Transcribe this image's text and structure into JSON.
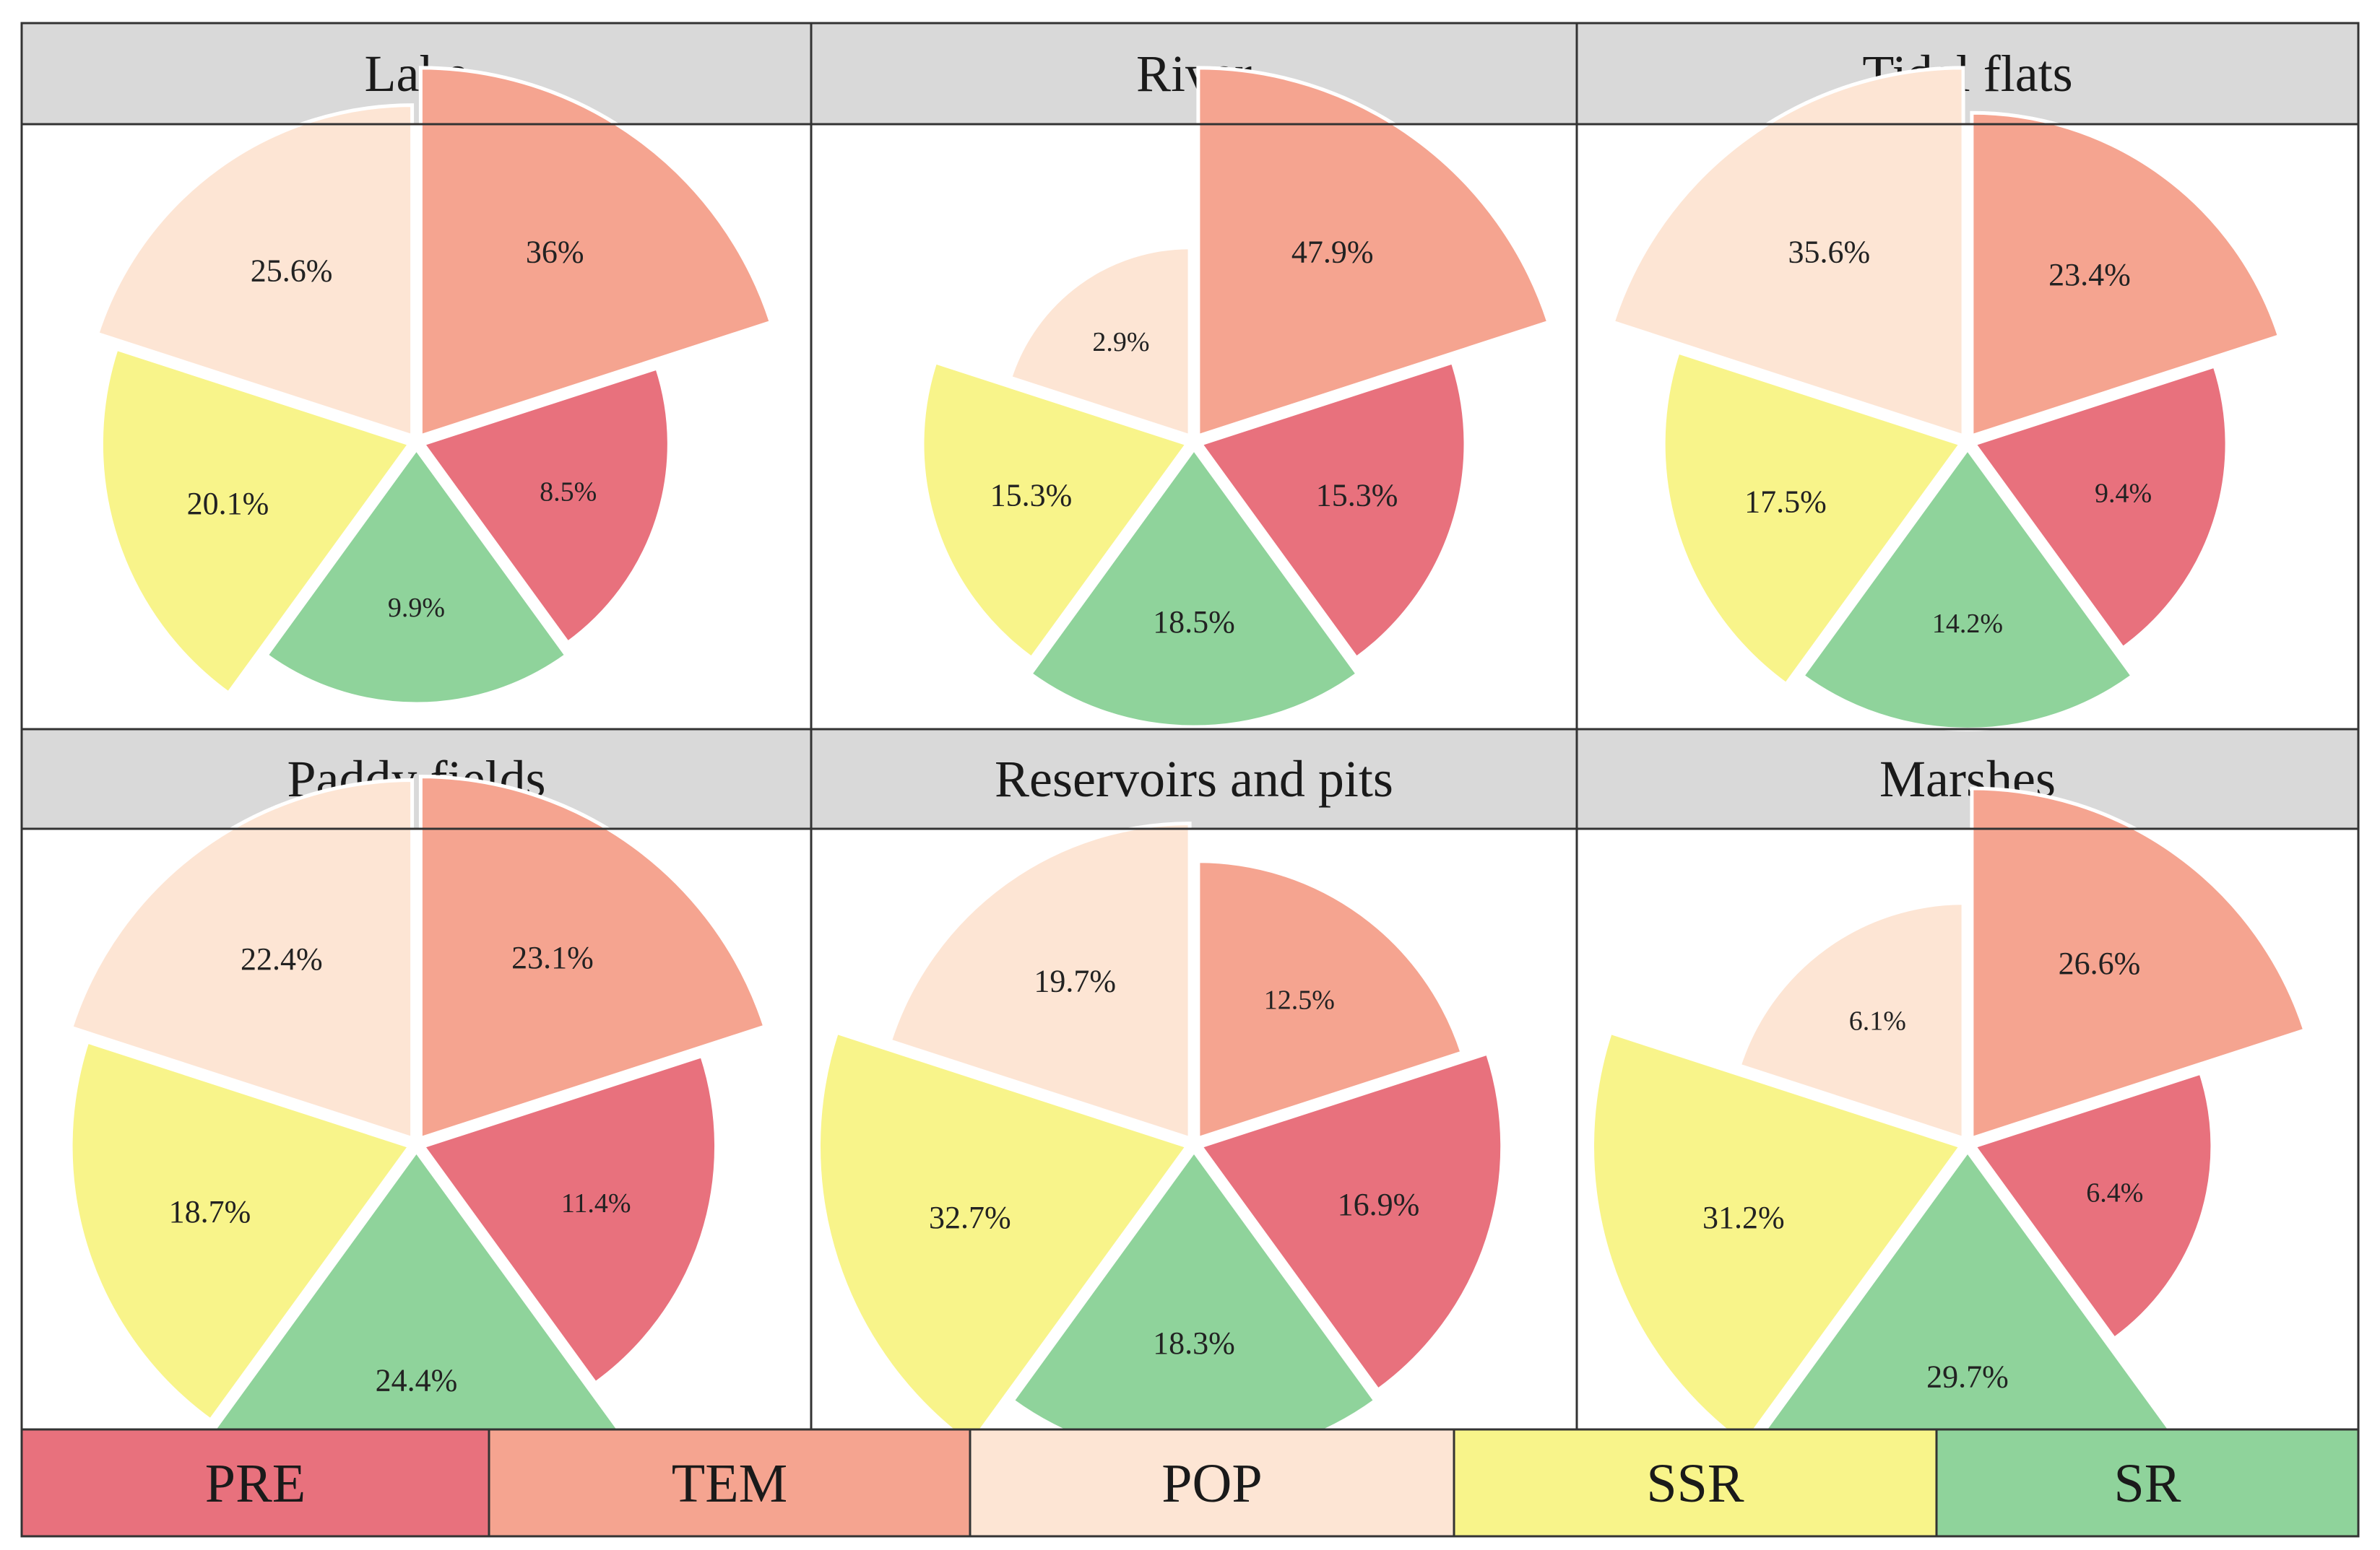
{
  "colors": {
    "PRE": "#e8717d",
    "TEM": "#f5a490",
    "POP": "#fde5d4",
    "SSR": "#f8f48a",
    "SR": "#8fd39b",
    "header_bg": "#d9d9d9",
    "frame": "#333333"
  },
  "legend": [
    {
      "key": "PRE",
      "label": "PRE"
    },
    {
      "key": "TEM",
      "label": "TEM"
    },
    {
      "key": "POP",
      "label": "POP"
    },
    {
      "key": "SSR",
      "label": "SSR"
    },
    {
      "key": "SR",
      "label": "SR"
    }
  ],
  "chart_data": [
    {
      "type": "pie",
      "title": "Lake",
      "slices": [
        {
          "key": "TEM",
          "label": "36%",
          "value": 36.0
        },
        {
          "key": "PRE",
          "label": "8.5%",
          "value": 8.5
        },
        {
          "key": "SR",
          "label": "9.9%",
          "value": 9.9
        },
        {
          "key": "SSR",
          "label": "20.1%",
          "value": 20.1
        },
        {
          "key": "POP",
          "label": "25.6%",
          "value": 25.6
        }
      ]
    },
    {
      "type": "pie",
      "title": "River",
      "slices": [
        {
          "key": "TEM",
          "label": "47.9%",
          "value": 47.9
        },
        {
          "key": "PRE",
          "label": "15.3%",
          "value": 15.3
        },
        {
          "key": "SR",
          "label": "18.5%",
          "value": 18.5
        },
        {
          "key": "SSR",
          "label": "15.3%",
          "value": 15.3
        },
        {
          "key": "POP",
          "label": "2.9%",
          "value": 2.9
        }
      ]
    },
    {
      "type": "pie",
      "title": "Tidal flats",
      "slices": [
        {
          "key": "TEM",
          "label": "23.4%",
          "value": 23.4
        },
        {
          "key": "PRE",
          "label": "9.4%",
          "value": 9.4
        },
        {
          "key": "SR",
          "label": "14.2%",
          "value": 14.2
        },
        {
          "key": "SSR",
          "label": "17.5%",
          "value": 17.5
        },
        {
          "key": "POP",
          "label": "35.6%",
          "value": 35.6
        }
      ]
    },
    {
      "type": "pie",
      "title": "Paddy fields",
      "slices": [
        {
          "key": "TEM",
          "label": "23.1%",
          "value": 23.1
        },
        {
          "key": "PRE",
          "label": "11.4%",
          "value": 11.4
        },
        {
          "key": "SR",
          "label": "24.4%",
          "value": 24.4
        },
        {
          "key": "SSR",
          "label": "18.7%",
          "value": 18.7
        },
        {
          "key": "POP",
          "label": "22.4%",
          "value": 22.4
        }
      ]
    },
    {
      "type": "pie",
      "title": "Reservoirs and pits",
      "slices": [
        {
          "key": "TEM",
          "label": "12.5%",
          "value": 12.5
        },
        {
          "key": "PRE",
          "label": "16.9%",
          "value": 16.9
        },
        {
          "key": "SR",
          "label": "18.3%",
          "value": 18.3
        },
        {
          "key": "SSR",
          "label": "32.7%",
          "value": 32.7
        },
        {
          "key": "POP",
          "label": "19.7%",
          "value": 19.7
        }
      ]
    },
    {
      "type": "pie",
      "title": "Marshes",
      "slices": [
        {
          "key": "TEM",
          "label": "26.6%",
          "value": 26.6
        },
        {
          "key": "PRE",
          "label": "6.4%",
          "value": 6.4
        },
        {
          "key": "SR",
          "label": "29.7%",
          "value": 29.7
        },
        {
          "key": "SSR",
          "label": "31.2%",
          "value": 31.2
        },
        {
          "key": "POP",
          "label": "6.1%",
          "value": 6.1
        }
      ]
    }
  ]
}
